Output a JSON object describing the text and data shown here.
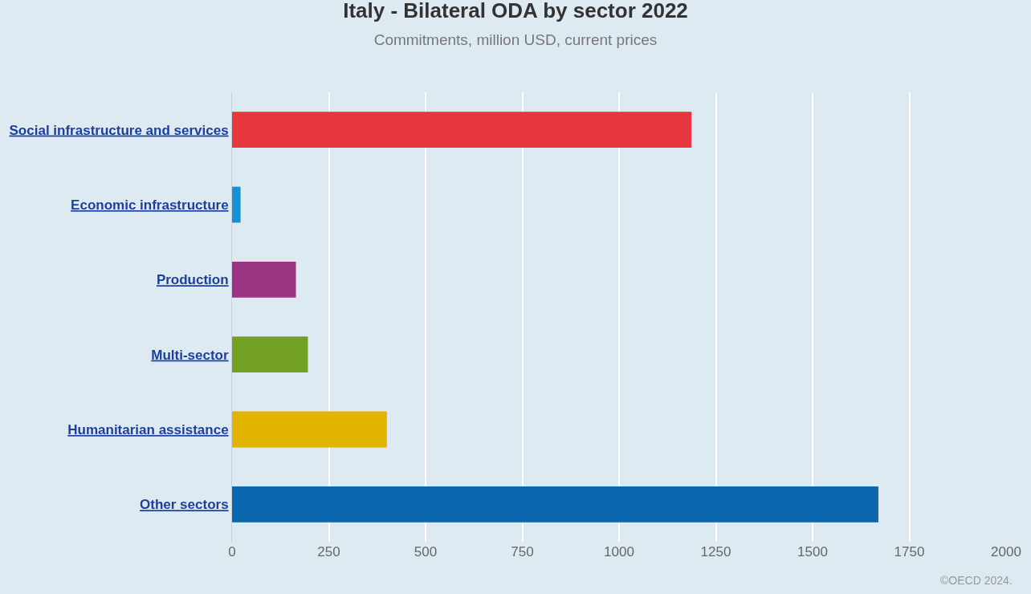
{
  "chart_data": {
    "type": "bar",
    "orientation": "horizontal",
    "title": "Italy - Bilateral ODA by sector 2022",
    "subtitle": "Commitments, million USD, current prices",
    "categories": [
      "Social infrastructure and services",
      "Economic infrastructure",
      "Production",
      "Multi-sector",
      "Humanitarian assistance",
      "Other sectors"
    ],
    "values": [
      1187,
      22,
      165,
      196,
      400,
      1670
    ],
    "colors": [
      "#e8363f",
      "#1a8fd6",
      "#9b3482",
      "#72a025",
      "#e1b400",
      "#0c68ae"
    ],
    "xlim": [
      0,
      2000
    ],
    "xticks": [
      0,
      250,
      500,
      750,
      1000,
      1250,
      1500,
      1750,
      2000
    ],
    "grid": "x",
    "annotations": [
      "©OECD 2024."
    ]
  }
}
